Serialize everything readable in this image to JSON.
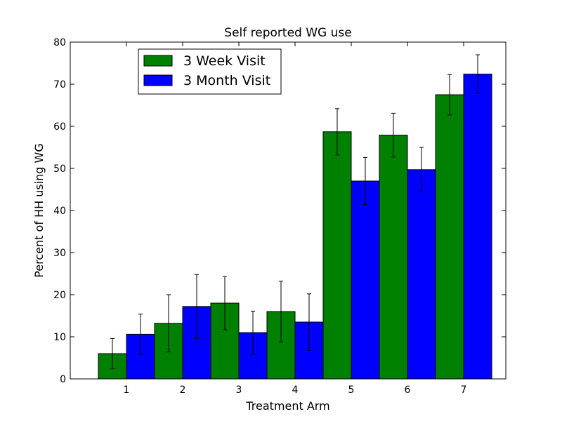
{
  "chart_data": {
    "type": "bar",
    "title": "Self reported WG use",
    "xlabel": "Treatment Arm",
    "ylabel": "Percent of HH using WG",
    "categories": [
      "1",
      "2",
      "3",
      "4",
      "5",
      "6",
      "7"
    ],
    "xlim": [
      0,
      7.75
    ],
    "ylim": [
      0,
      80
    ],
    "yticks": [
      "0",
      "10",
      "20",
      "30",
      "40",
      "50",
      "60",
      "70",
      "80"
    ],
    "legend_position": "top-left",
    "grid": false,
    "series": [
      {
        "name": "3 Week Visit",
        "color": "#008000",
        "values": [
          6.0,
          13.2,
          18.0,
          16.0,
          58.7,
          57.9,
          67.5
        ],
        "error": [
          3.6,
          6.8,
          6.3,
          7.2,
          5.5,
          5.2,
          4.8
        ]
      },
      {
        "name": "3 Month Visit",
        "color": "#0000ff",
        "values": [
          10.6,
          17.2,
          11.0,
          13.5,
          47.0,
          49.7,
          72.4
        ],
        "error": [
          4.8,
          7.6,
          5.1,
          6.7,
          5.6,
          5.3,
          4.6
        ]
      }
    ]
  }
}
